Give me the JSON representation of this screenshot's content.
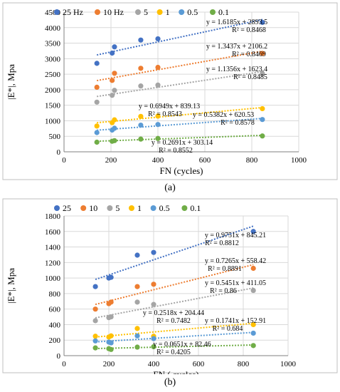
{
  "colors": {
    "25": "#4472c4",
    "10": "#ed7d31",
    "5": "#a5a5a5",
    "1": "#ffc000",
    "0.5": "#5b9bd5",
    "0.1": "#70ad47",
    "grid": "#d9d9d9",
    "axis": "#808080"
  },
  "chart_data": [
    {
      "type": "scatter",
      "panel_label": "a",
      "caption": "(a)",
      "xlabel": "FN (cycles)",
      "ylabel": "|E*|, Mpa",
      "xlim": [
        0,
        1000
      ],
      "ylim": [
        0,
        4500
      ],
      "xticks": [
        0,
        200,
        400,
        600,
        800,
        1000
      ],
      "yticks": [
        0,
        500,
        1000,
        1500,
        2000,
        2500,
        3000,
        3500,
        4000,
        4500
      ],
      "legend_position": "top",
      "series": [
        {
          "name": "25 Hz",
          "key": "25",
          "x": [
            140,
            205,
            215,
            327,
            400,
            845
          ],
          "y": [
            2850,
            3180,
            3380,
            3600,
            3640,
            4170
          ],
          "trend_equation": "y = 1.6185x + 2893.5",
          "r2": "R² = 0.8468",
          "slope": 1.6185,
          "intercept": 2893.5
        },
        {
          "name": "10 Hz",
          "key": "10",
          "x": [
            140,
            205,
            215,
            327,
            400,
            845
          ],
          "y": [
            2080,
            2300,
            2530,
            2690,
            2720,
            3170
          ],
          "trend_equation": "y = 1.3437x + 2106.2",
          "r2": "R² = 0.8469",
          "slope": 1.3437,
          "intercept": 2106.2
        },
        {
          "name": "5",
          "key": "5",
          "x": [
            140,
            205,
            215,
            327,
            400,
            845
          ],
          "y": [
            1600,
            1820,
            1980,
            2120,
            2150,
            2520
          ],
          "trend_equation": "y = 1.1356x + 1623.4",
          "r2": "R² = 0.8485",
          "slope": 1.1356,
          "intercept": 1623.4
        },
        {
          "name": "1",
          "key": "1",
          "x": [
            140,
            205,
            215,
            327,
            400,
            845
          ],
          "y": [
            830,
            940,
            1030,
            1140,
            1150,
            1390
          ],
          "trend_equation": "y = 0.6949x + 839.13",
          "r2": "R² = 0.8543",
          "slope": 0.6949,
          "intercept": 839.13
        },
        {
          "name": "0.5",
          "key": "0.5",
          "x": [
            140,
            205,
            215,
            327,
            400,
            845
          ],
          "y": [
            620,
            700,
            760,
            860,
            880,
            1040
          ],
          "trend_equation": "y = 0.5382x + 620.53",
          "r2": "R² = 0.8578",
          "slope": 0.5382,
          "intercept": 620.53
        },
        {
          "name": "0.1",
          "key": "0.1",
          "x": [
            140,
            205,
            215,
            327,
            400,
            845
          ],
          "y": [
            310,
            340,
            360,
            410,
            430,
            510
          ],
          "trend_equation": "y = 0.2691x + 303.14",
          "r2": "R² = 0.8552",
          "slope": 0.2691,
          "intercept": 303.14
        }
      ]
    },
    {
      "type": "scatter",
      "panel_label": "b",
      "caption": "(b)",
      "xlabel": "FN ( cycles)",
      "ylabel": "|E*|,  Mpa",
      "xlim": [
        0,
        1000
      ],
      "ylim": [
        0,
        1800
      ],
      "xticks": [
        0,
        200,
        400,
        600,
        800,
        1000
      ],
      "yticks": [
        0,
        200,
        400,
        600,
        800,
        1000,
        1200,
        1400,
        1600,
        1800
      ],
      "legend_position": "top",
      "series": [
        {
          "name": "25",
          "key": "25",
          "x": [
            140,
            200,
            210,
            327,
            400,
            845
          ],
          "y": [
            890,
            1000,
            1010,
            1295,
            1330,
            1600
          ],
          "trend_equation": "y = 0.9751x + 845.21",
          "r2": "R² = 0.8812",
          "slope": 0.9751,
          "intercept": 845.21
        },
        {
          "name": "10",
          "key": "10",
          "x": [
            140,
            200,
            210,
            327,
            400,
            845
          ],
          "y": [
            600,
            670,
            690,
            890,
            920,
            1125
          ],
          "trend_equation": "y = 0.7265x + 558.42",
          "r2": "R² = 0.8891",
          "slope": 0.7265,
          "intercept": 558.42
        },
        {
          "name": "5",
          "key": "5",
          "x": [
            140,
            200,
            210,
            327,
            400,
            845
          ],
          "y": [
            450,
            490,
            500,
            690,
            660,
            840
          ],
          "trend_equation": "y = 0.5451x + 411.05",
          "r2": "R² = 0.86",
          "slope": 0.5451,
          "intercept": 411.05
        },
        {
          "name": "1",
          "key": "1",
          "x": [
            140,
            200,
            210,
            327,
            400,
            845
          ],
          "y": [
            250,
            240,
            255,
            350,
            250,
            400
          ],
          "trend_equation": "y = 0.2518x + 204.44",
          "r2": "R² = 0.7482",
          "slope": 0.2518,
          "intercept": 204.44
        },
        {
          "name": "0.5",
          "key": "0.5",
          "x": [
            140,
            200,
            210,
            327,
            400,
            845
          ],
          "y": [
            190,
            175,
            165,
            255,
            220,
            290
          ],
          "trend_equation": "y = 0.1741x + 152.91",
          "r2": "R² = 0.684",
          "slope": 0.1741,
          "intercept": 152.91
        },
        {
          "name": "0.1",
          "key": "0.1",
          "x": [
            140,
            200,
            210,
            327,
            400,
            845
          ],
          "y": [
            100,
            90,
            80,
            110,
            115,
            130
          ],
          "trend_equation": "y = 0.0651x + 82.46",
          "r2": "R² = 0.4205",
          "slope": 0.0651,
          "intercept": 82.46
        }
      ]
    }
  ]
}
